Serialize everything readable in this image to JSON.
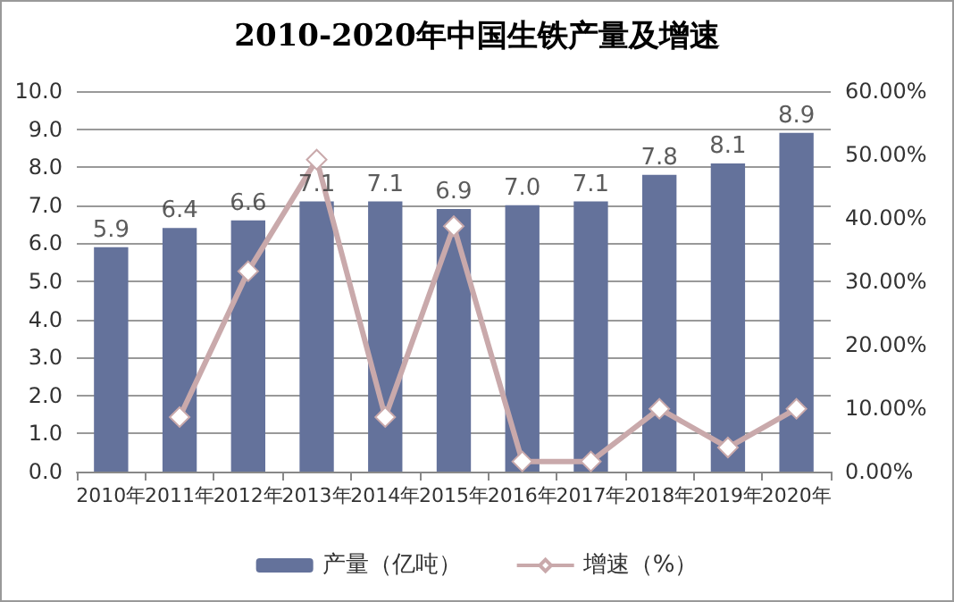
{
  "chart_data": {
    "type": "bar",
    "title": "2010-2020年中国生铁产量及增速",
    "categories": [
      "2010年",
      "2011年",
      "2012年",
      "2013年",
      "2014年",
      "2015年",
      "2016年",
      "2017年",
      "2018年",
      "2019年",
      "2020年"
    ],
    "series": [
      {
        "name": "产量（亿吨）",
        "color": "#64729b",
        "values": [
          5.9,
          6.4,
          6.6,
          7.1,
          7.1,
          6.9,
          7.0,
          7.1,
          7.8,
          8.1,
          8.9
        ],
        "value_labels": [
          "5.9",
          "6.4",
          "6.6",
          "7.1",
          "7.1",
          "6.9",
          "7.0",
          "7.1",
          "7.8",
          "8.1",
          "8.9"
        ]
      },
      {
        "name": "增速（%）",
        "type": "line",
        "axis": "y2",
        "color": "#c9a9ab",
        "marker": "diamond",
        "values": [
          null,
          8.6,
          31.6,
          49.2,
          8.6,
          38.7,
          1.6,
          1.6,
          9.9,
          3.8,
          9.9
        ]
      }
    ],
    "ylim": [
      0,
      10
    ],
    "yticks": [
      {
        "value": 0,
        "label": "0.0"
      },
      {
        "value": 1,
        "label": "1.0"
      },
      {
        "value": 2,
        "label": "2.0"
      },
      {
        "value": 3,
        "label": "3.0"
      },
      {
        "value": 4,
        "label": "4.0"
      },
      {
        "value": 5,
        "label": "5.0"
      },
      {
        "value": 6,
        "label": "6.0"
      },
      {
        "value": 7,
        "label": "7.0"
      },
      {
        "value": 8,
        "label": "8.0"
      },
      {
        "value": 9,
        "label": "9.0"
      },
      {
        "value": 10,
        "label": "10.0"
      }
    ],
    "y2lim": [
      0,
      60
    ],
    "y2ticks": [
      {
        "value": 0,
        "label": "0.00%"
      },
      {
        "value": 10,
        "label": "10.00%"
      },
      {
        "value": 20,
        "label": "20.00%"
      },
      {
        "value": 30,
        "label": "30.00%"
      },
      {
        "value": 40,
        "label": "40.00%"
      },
      {
        "value": 50,
        "label": "50.00%"
      },
      {
        "value": 60,
        "label": "60.00%"
      }
    ],
    "grid": "y",
    "legend": "bottom"
  }
}
